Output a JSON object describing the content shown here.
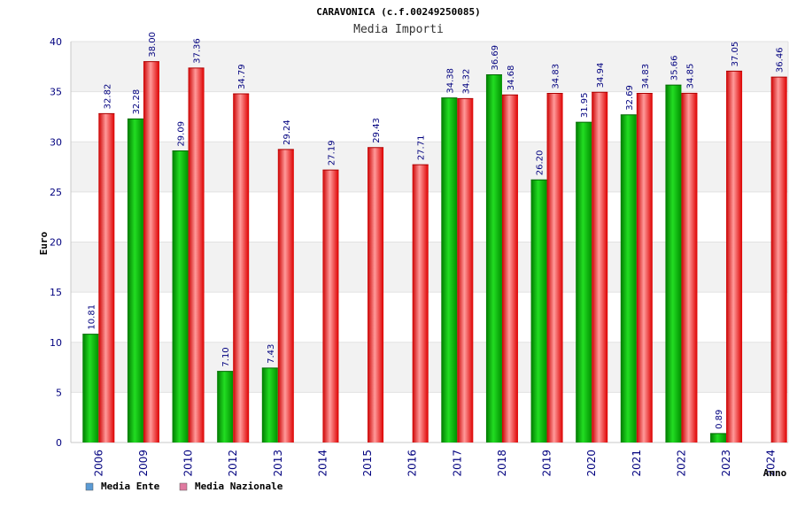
{
  "chart_data": {
    "type": "bar",
    "title": "CARAVONICA (c.f.00249250085)",
    "subtitle": "Media Importi",
    "xlabel": "Anno",
    "ylabel": "Euro",
    "ylim": [
      0,
      40
    ],
    "yticks": [
      "0",
      "5",
      "10",
      "15",
      "20",
      "25",
      "30",
      "35",
      "40"
    ],
    "grid": "horizontal bands",
    "legend_position": "bottom-left",
    "categories": [
      "2006",
      "2009",
      "2010",
      "2012",
      "2013",
      "2014",
      "2015",
      "2016",
      "2017",
      "2018",
      "2019",
      "2020",
      "2021",
      "2022",
      "2023",
      "2024"
    ],
    "series": [
      {
        "name": "Media Ente",
        "color": "#00b000",
        "legend_color": "#5b9bd5",
        "values": [
          10.81,
          32.28,
          29.09,
          7.1,
          7.43,
          null,
          null,
          null,
          34.38,
          36.69,
          26.2,
          31.95,
          32.69,
          35.66,
          0.89,
          null
        ],
        "labels": [
          "10.81",
          "32.28",
          "29.09",
          "7.10",
          "7.43",
          "",
          "",
          "",
          "34.38",
          "36.69",
          "26.20",
          "31.95",
          "32.69",
          "35.66",
          "0.89",
          ""
        ]
      },
      {
        "name": "Media Nazionale",
        "color": "#ee1111",
        "legend_color": "#e07aa0",
        "values": [
          32.82,
          38.0,
          37.36,
          34.79,
          29.24,
          27.19,
          29.43,
          27.71,
          34.32,
          34.68,
          34.83,
          34.94,
          34.83,
          34.85,
          37.05,
          36.46
        ],
        "labels": [
          "32.82",
          "38.00",
          "37.36",
          "34.79",
          "29.24",
          "27.19",
          "29.43",
          "27.71",
          "34.32",
          "34.68",
          "34.83",
          "34.94",
          "34.83",
          "34.85",
          "37.05",
          "36.46"
        ]
      }
    ]
  }
}
